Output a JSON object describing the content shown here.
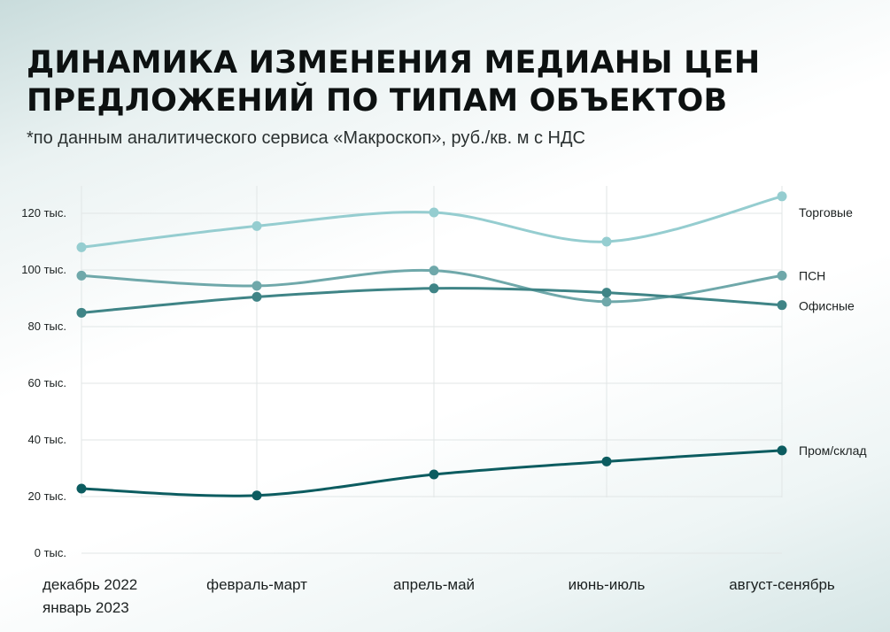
{
  "title_line1": "ДИНАМИКА ИЗМЕНЕНИЯ МЕДИАНЫ ЦЕН",
  "title_line2": "ПРЕДЛОЖЕНИЙ ПО ТИПАМ ОБЪЕКТОВ",
  "subtitle": "*по данным аналитического сервиса «Макроскоп», руб./кв. м с НДС",
  "chart_data": {
    "type": "line",
    "categories": [
      [
        "декабрь 2022",
        "январь 2023"
      ],
      [
        "февраль-март"
      ],
      [
        "апрель-май"
      ],
      [
        "июнь-июль"
      ],
      [
        "август-сенябрь"
      ]
    ],
    "ylim": [
      0,
      125000
    ],
    "yticks": [
      0,
      20000,
      40000,
      60000,
      80000,
      100000,
      120000
    ],
    "ytick_labels": [
      "0 тыс.",
      "20 тыс.",
      "40 тыс.",
      "60 тыс.",
      "80 тыс.",
      "100 тыс.",
      "120 тыс."
    ],
    "grid": true,
    "series": [
      {
        "name": "Торговые",
        "color": "#95cdd0",
        "values": [
          108000,
          115500,
          120300,
          110000,
          126000
        ]
      },
      {
        "name": "ПСН",
        "color": "#6fa8aa",
        "values": [
          98000,
          94400,
          99800,
          88800,
          98000
        ]
      },
      {
        "name": "Офисные",
        "color": "#3f8486",
        "values": [
          84900,
          90500,
          93500,
          92000,
          87600
        ]
      },
      {
        "name": "Пром/склад",
        "color": "#0c5c60",
        "values": [
          22800,
          20400,
          27800,
          32400,
          36300
        ]
      }
    ]
  }
}
